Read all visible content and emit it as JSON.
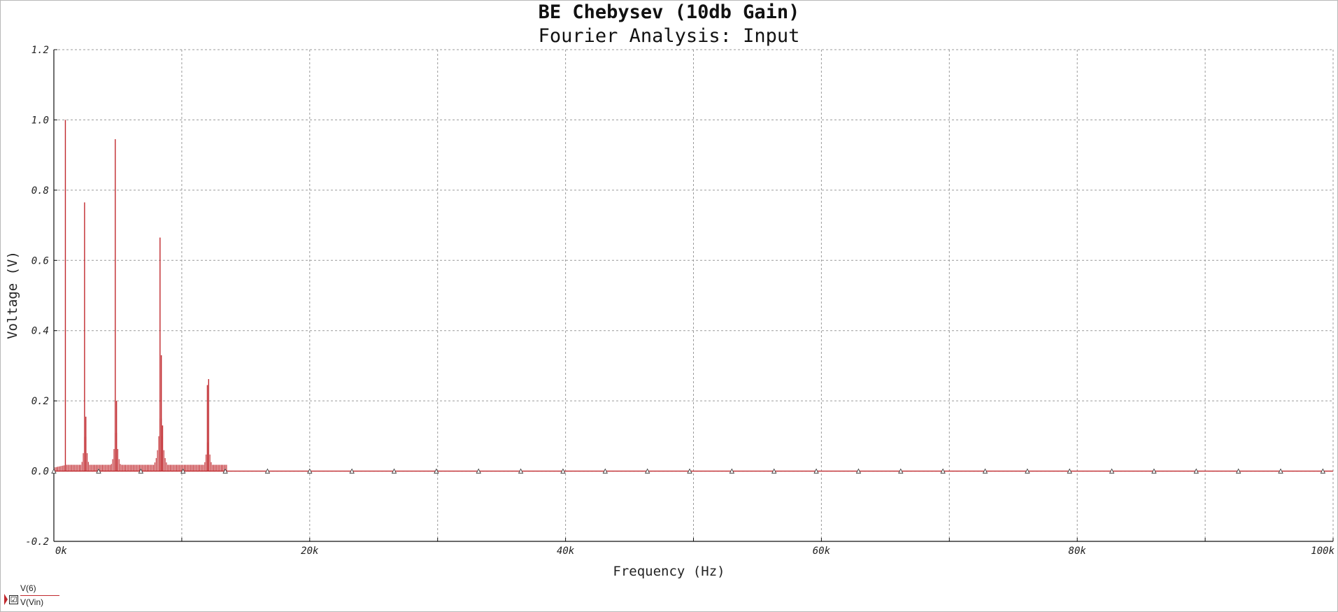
{
  "chart_data": {
    "type": "bar",
    "title": "BE Chebysev (10db Gain)",
    "subtitle": "Fourier Analysis: Input",
    "xlabel": "Frequency (Hz)",
    "ylabel": "Voltage (V)",
    "xlim": [
      0,
      100000
    ],
    "ylim": [
      -0.2,
      1.2
    ],
    "x_ticks": [
      {
        "value": 0,
        "label": "0k"
      },
      {
        "value": 20000,
        "label": "20k"
      },
      {
        "value": 40000,
        "label": "40k"
      },
      {
        "value": 60000,
        "label": "60k"
      },
      {
        "value": 80000,
        "label": "80k"
      },
      {
        "value": 100000,
        "label": "100k"
      }
    ],
    "y_ticks": [
      {
        "value": -0.2,
        "label": "-0.2"
      },
      {
        "value": 0.0,
        "label": "0.0"
      },
      {
        "value": 0.2,
        "label": "0.2"
      },
      {
        "value": 0.4,
        "label": "0.4"
      },
      {
        "value": 0.6,
        "label": "0.6"
      },
      {
        "value": 0.8,
        "label": "0.8"
      },
      {
        "value": 1.0,
        "label": "1.0"
      },
      {
        "value": 1.2,
        "label": "1.2"
      }
    ],
    "grid": true,
    "legend_position": "bottom-left",
    "color": "#c0282d",
    "series": [
      {
        "name": "V(Vin)",
        "peaks": [
          {
            "x": 900,
            "y": 1.0
          },
          {
            "x": 2400,
            "y": 0.765
          },
          {
            "x": 2500,
            "y": 0.155
          },
          {
            "x": 4800,
            "y": 0.945
          },
          {
            "x": 4900,
            "y": 0.2
          },
          {
            "x": 8300,
            "y": 0.665
          },
          {
            "x": 8400,
            "y": 0.33
          },
          {
            "x": 8500,
            "y": 0.13
          },
          {
            "x": 12100,
            "y": 0.262
          },
          {
            "x": 12000,
            "y": 0.245
          }
        ],
        "clusters": [
          {
            "center": 2450,
            "peak": 0.11,
            "width": 400
          },
          {
            "center": 4850,
            "peak": 0.12,
            "width": 450
          },
          {
            "center": 8350,
            "peak": 0.16,
            "width": 550
          },
          {
            "center": 12050,
            "peak": 0.09,
            "width": 450
          }
        ],
        "baseline_level": 0.018,
        "noise_floor_end": 13500,
        "marker_x": [
          0,
          3500,
          6800,
          10100,
          13400,
          16700,
          20000,
          23300,
          26600,
          29900,
          33200,
          36500,
          39800,
          43100,
          46400,
          49700,
          53000,
          56300,
          59600,
          62900,
          66200,
          69500,
          72800,
          76100,
          79400,
          82700,
          86000,
          89300,
          92600,
          95900,
          99200
        ]
      }
    ]
  },
  "legend": {
    "items": [
      {
        "label": "V(6)"
      },
      {
        "label": "V(Vin)"
      }
    ],
    "checkbox_mark": "☑"
  }
}
